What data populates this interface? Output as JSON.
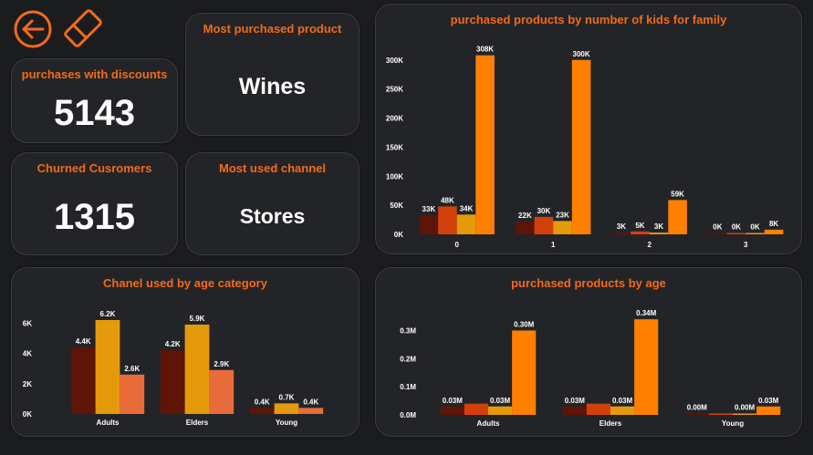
{
  "colors": {
    "accent": "#f26a1b",
    "background": "#1b1c1e",
    "card": "#232427",
    "series": [
      "#5e1406",
      "#d3410b",
      "#e59a0c",
      "#ff8000"
    ],
    "age_series": [
      "#5e1406",
      "#e59a0c",
      "#e86b3a"
    ]
  },
  "nav": {
    "back_icon": "back-arrow-icon",
    "eraser_icon": "eraser-icon"
  },
  "kpis": {
    "discounts": {
      "label": "purchases with discounts",
      "value": "5143"
    },
    "most_product": {
      "label": "Most purchased product",
      "value": "Wines"
    },
    "churned": {
      "label": "Churned Cusromers",
      "value": "1315"
    },
    "most_channel": {
      "label": "Most used channel",
      "value": "Stores"
    }
  },
  "chart_data": [
    {
      "id": "kids",
      "type": "bar",
      "title": "purchased products by number of kids for family",
      "categories": [
        "0",
        "1",
        "2",
        "3"
      ],
      "ylim": [
        0,
        320000
      ],
      "yticks": [
        0,
        50000,
        100000,
        150000,
        200000,
        250000,
        300000
      ],
      "ytick_labels": [
        "0K",
        "50K",
        "100K",
        "150K",
        "200K",
        "250K",
        "300K"
      ],
      "series": [
        {
          "values": [
            33000,
            22000,
            3000,
            0
          ],
          "labels": [
            "33K",
            "22K",
            "3K",
            "0K"
          ]
        },
        {
          "values": [
            48000,
            30000,
            5000,
            0
          ],
          "labels": [
            "48K",
            "30K",
            "5K",
            "0K"
          ]
        },
        {
          "values": [
            34000,
            23000,
            3000,
            0
          ],
          "labels": [
            "34K",
            "23K",
            "3K",
            "0K"
          ]
        },
        {
          "values": [
            308000,
            300000,
            59000,
            8000
          ],
          "labels": [
            "308K",
            "300K",
            "59K",
            "8K"
          ]
        }
      ],
      "grid": false
    },
    {
      "id": "channel",
      "type": "bar",
      "title": "Chanel used by age category",
      "categories": [
        "Adults",
        "Elders",
        "Young"
      ],
      "ylim": [
        0,
        6500
      ],
      "yticks": [
        0,
        2000,
        4000,
        6000
      ],
      "ytick_labels": [
        "0K",
        "2K",
        "4K",
        "6K"
      ],
      "series": [
        {
          "values": [
            4400,
            4200,
            400
          ],
          "labels": [
            "4.4K",
            "4.2K",
            "0.4K"
          ]
        },
        {
          "values": [
            6200,
            5900,
            700
          ],
          "labels": [
            "6.2K",
            "5.9K",
            "0.7K"
          ]
        },
        {
          "values": [
            2600,
            2900,
            400
          ],
          "labels": [
            "2.6K",
            "2.9K",
            "0.4K"
          ]
        }
      ],
      "grid": false
    },
    {
      "id": "age",
      "type": "bar",
      "title": "purchased products by age",
      "categories": [
        "Adults",
        "Elders",
        "Young"
      ],
      "ylim": [
        0,
        0.36
      ],
      "yticks": [
        0,
        0.1,
        0.2,
        0.3
      ],
      "ytick_labels": [
        "0.0M",
        "0.1M",
        "0.2M",
        "0.3M"
      ],
      "series": [
        {
          "values": [
            0.03,
            0.03,
            0.0
          ],
          "labels": [
            "0.03M",
            "0.03M",
            "0.00M"
          ]
        },
        {
          "values": [
            0.04,
            0.04,
            0.005
          ],
          "labels": [
            "",
            "",
            ""
          ]
        },
        {
          "values": [
            0.03,
            0.03,
            0.0
          ],
          "labels": [
            "0.03M",
            "0.03M",
            "0.00M"
          ]
        },
        {
          "values": [
            0.3,
            0.34,
            0.03
          ],
          "labels": [
            "0.30M",
            "0.34M",
            "0.03M"
          ]
        }
      ],
      "grid": false
    }
  ]
}
